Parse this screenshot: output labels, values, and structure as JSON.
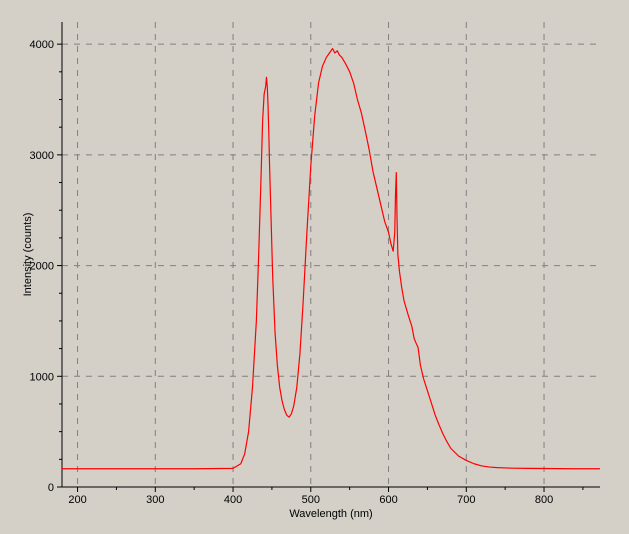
{
  "chart_data": {
    "type": "line",
    "title": "",
    "xlabel": "Wavelength (nm)",
    "ylabel": "Intensity (counts)",
    "xlim": [
      180,
      872
    ],
    "ylim": [
      0,
      4200
    ],
    "x_ticks": [
      200,
      300,
      400,
      500,
      600,
      700,
      800
    ],
    "x_tick_labels": [
      "200",
      "300",
      "400",
      "500",
      "600",
      "700",
      "800"
    ],
    "y_ticks": [
      0,
      1000,
      2000,
      3000,
      4000
    ],
    "y_tick_labels": [
      "0",
      "1000",
      "2000",
      "3000",
      "4000"
    ],
    "grid": true,
    "grid_style": "dashed",
    "legend": "none",
    "colors": {
      "line": "#ff0000",
      "background": "#d4d0c8",
      "grid": "#808080",
      "axis": "#000000"
    },
    "series": [
      {
        "x": [
          180,
          200,
          250,
          300,
          350,
          400,
          410,
          415,
          420,
          425,
          430,
          433,
          436,
          438,
          440,
          442,
          443,
          444,
          445,
          446,
          447,
          449,
          451,
          454,
          457,
          460,
          463,
          466,
          469,
          472,
          475,
          478,
          482,
          486,
          490,
          495,
          500,
          505,
          510,
          515,
          520,
          525,
          528,
          531,
          534,
          537,
          540,
          545,
          550,
          555,
          560,
          565,
          570,
          575,
          580,
          585,
          590,
          595,
          600,
          603,
          606,
          608,
          609,
          610,
          611,
          612,
          614,
          617,
          620,
          625,
          630,
          633,
          636,
          638,
          641,
          645,
          650,
          655,
          660,
          665,
          670,
          675,
          680,
          690,
          700,
          710,
          720,
          730,
          740,
          760,
          780,
          800,
          820,
          840,
          860,
          872
        ],
        "y": [
          165,
          165,
          165,
          165,
          165,
          168,
          210,
          300,
          500,
          900,
          1500,
          2100,
          2800,
          3300,
          3550,
          3620,
          3700,
          3620,
          3450,
          3200,
          2900,
          2400,
          1900,
          1400,
          1100,
          900,
          780,
          700,
          650,
          630,
          660,
          730,
          900,
          1200,
          1650,
          2300,
          2900,
          3350,
          3650,
          3800,
          3880,
          3930,
          3960,
          3920,
          3940,
          3900,
          3880,
          3820,
          3750,
          3650,
          3500,
          3380,
          3220,
          3050,
          2850,
          2700,
          2550,
          2400,
          2300,
          2200,
          2130,
          2300,
          2650,
          2840,
          2400,
          2100,
          1950,
          1800,
          1680,
          1560,
          1450,
          1340,
          1290,
          1260,
          1100,
          980,
          870,
          760,
          650,
          560,
          480,
          410,
          350,
          280,
          240,
          210,
          190,
          180,
          175,
          170,
          168,
          167,
          166,
          165,
          165,
          165
        ]
      }
    ]
  }
}
